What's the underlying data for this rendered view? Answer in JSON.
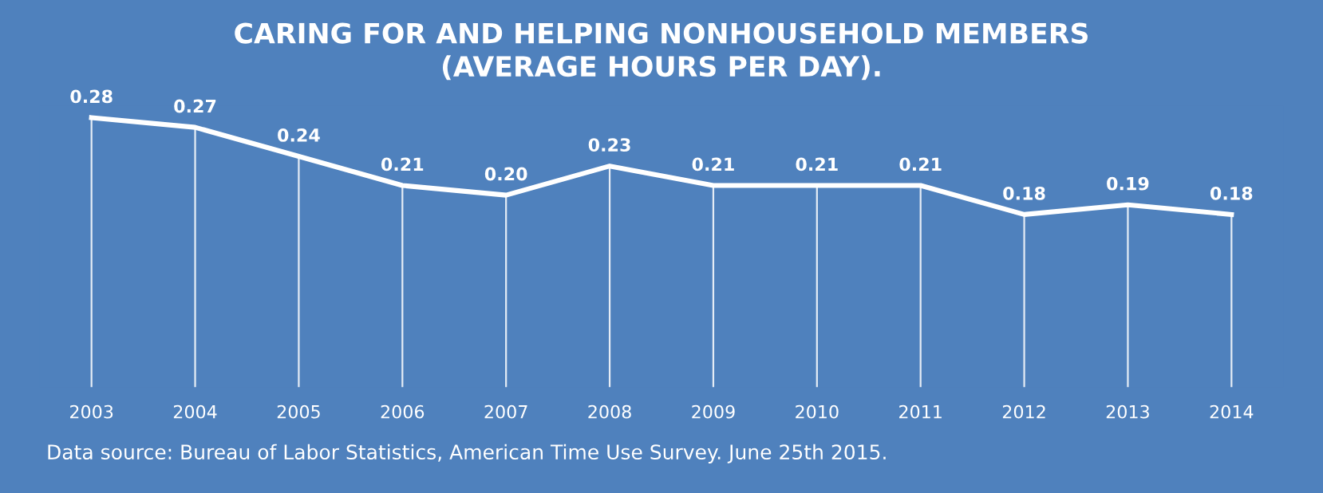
{
  "chart_data": {
    "type": "line",
    "title": "CARING FOR AND HELPING NONHOUSEHOLD MEMBERS\n(AVERAGE HOURS PER DAY).",
    "categories": [
      "2003",
      "2004",
      "2005",
      "2006",
      "2007",
      "2008",
      "2009",
      "2010",
      "2011",
      "2012",
      "2013",
      "2014"
    ],
    "series": [
      {
        "color": "#ffffff",
        "values": [
          0.28,
          0.27,
          0.24,
          0.21,
          0.2,
          0.23,
          0.21,
          0.21,
          0.21,
          0.18,
          0.19,
          0.18
        ],
        "value_labels": [
          "0.28",
          "0.27",
          "0.24",
          "0.21",
          "0.20",
          "0.23",
          "0.21",
          "0.21",
          "0.21",
          "0.18",
          "0.19",
          "0.18"
        ]
      }
    ],
    "legend": false,
    "grid": "x",
    "line_style": "solid",
    "annotations": [
      "Data source: Bureau of Labor Statistics, American Time Use Survey. June 25th 2015."
    ]
  }
}
